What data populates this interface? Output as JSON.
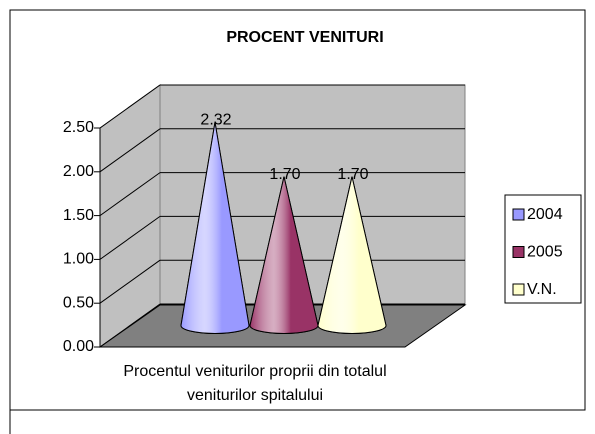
{
  "chart_data": {
    "type": "bar3d-cone",
    "title": "PROCENT VENITURI",
    "categories": [
      "Procentul veniturilor proprii din totalul veniturilor spitalului"
    ],
    "series": [
      {
        "name": "2004",
        "color": "#9999ff",
        "values": [
          2.32
        ],
        "value_labels": [
          "2.32"
        ]
      },
      {
        "name": "2005",
        "color": "#993366",
        "values": [
          1.7
        ],
        "value_labels": [
          "1.70"
        ]
      },
      {
        "name": "V.N.",
        "color": "#ffffcc",
        "values": [
          1.7
        ],
        "value_labels": [
          "1.70"
        ]
      }
    ],
    "ylim": [
      0,
      2.5
    ],
    "yticks": [
      {
        "value": 0,
        "label": "0.00"
      },
      {
        "value": 0.5,
        "label": "0.50"
      },
      {
        "value": 1,
        "label": "1.00"
      },
      {
        "value": 1.5,
        "label": "1.50"
      },
      {
        "value": 2,
        "label": "2.00"
      },
      {
        "value": 2.5,
        "label": "2.50"
      }
    ],
    "grid": true,
    "legend": "right"
  }
}
